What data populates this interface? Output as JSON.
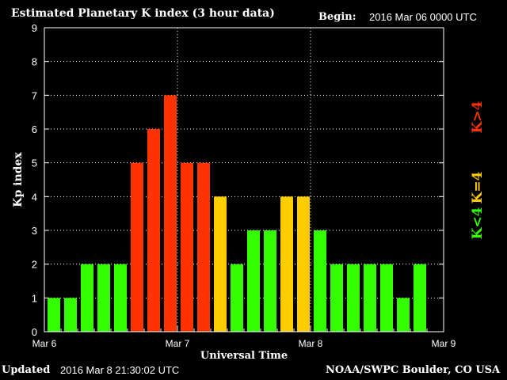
{
  "header": {
    "title": "Estimated Planetary K index (3 hour data)",
    "begin_label": "Begin:",
    "begin_value": "2016 Mar 06 0000 UTC"
  },
  "footer": {
    "updated_label": "Updated",
    "updated_value": "2016 Mar  8 21:30:02 UTC",
    "credit": "NOAA/SWPC Boulder, CO USA"
  },
  "colors": {
    "background": "#000000",
    "low": "#33ff00",
    "mid": "#ffcc00",
    "high": "#ff3300",
    "grid": "#ffffff"
  },
  "chart_data": {
    "type": "bar",
    "title": "Estimated Planetary K index (3 hour data)",
    "xlabel": "Universal Time",
    "ylabel": "Kp index",
    "ylim": [
      0,
      9
    ],
    "yticks": [
      "0",
      "1",
      "2",
      "3",
      "4",
      "5",
      "6",
      "7",
      "8",
      "9"
    ],
    "xticks": [
      "Mar 6",
      "Mar 7",
      "Mar 8",
      "Mar 9"
    ],
    "grid": true,
    "values": [
      1,
      1,
      2,
      2,
      2,
      5,
      6,
      7,
      5,
      5,
      4,
      2,
      3,
      3,
      4,
      4,
      3,
      2,
      2,
      2,
      2,
      1,
      2
    ],
    "legend": {
      "placement": "right",
      "entries": [
        {
          "label": "K<4",
          "color": "#33ff00"
        },
        {
          "label": "K=4",
          "color": "#ffcc00"
        },
        {
          "label": "K>4",
          "color": "#ff3300"
        }
      ]
    }
  }
}
